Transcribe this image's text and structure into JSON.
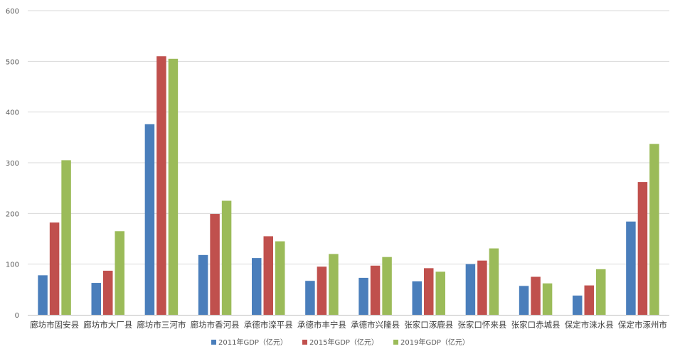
{
  "chart_data": {
    "type": "bar",
    "categories": [
      "廊坊市固安县",
      "廊坊市大厂县",
      "廊坊市三河市",
      "廊坊市香河县",
      "承德市滦平县",
      "承德市丰宁县",
      "承德市兴隆县",
      "张家口涿鹿县",
      "张家口怀来县",
      "张家口赤城县",
      "保定市涞水县",
      "保定市涿州市"
    ],
    "series": [
      {
        "name": "2011年GDP（亿元）",
        "color": "#4a7ebb",
        "values": [
          78,
          63,
          376,
          118,
          112,
          67,
          73,
          66,
          100,
          57,
          38,
          184
        ]
      },
      {
        "name": "2015年GDP（亿元）",
        "color": "#c0504d",
        "values": [
          182,
          87,
          510,
          199,
          155,
          95,
          97,
          92,
          107,
          75,
          58,
          262
        ]
      },
      {
        "name": "2019年GDP（亿元）",
        "color": "#9bbb59",
        "values": [
          305,
          165,
          505,
          225,
          145,
          120,
          114,
          85,
          131,
          62,
          90,
          337
        ]
      }
    ],
    "ylim": [
      0,
      600
    ],
    "yticks": [
      0,
      100,
      200,
      300,
      400,
      500,
      600
    ],
    "grid": true,
    "legend_position": "bottom",
    "title": "",
    "xlabel": "",
    "ylabel": ""
  }
}
